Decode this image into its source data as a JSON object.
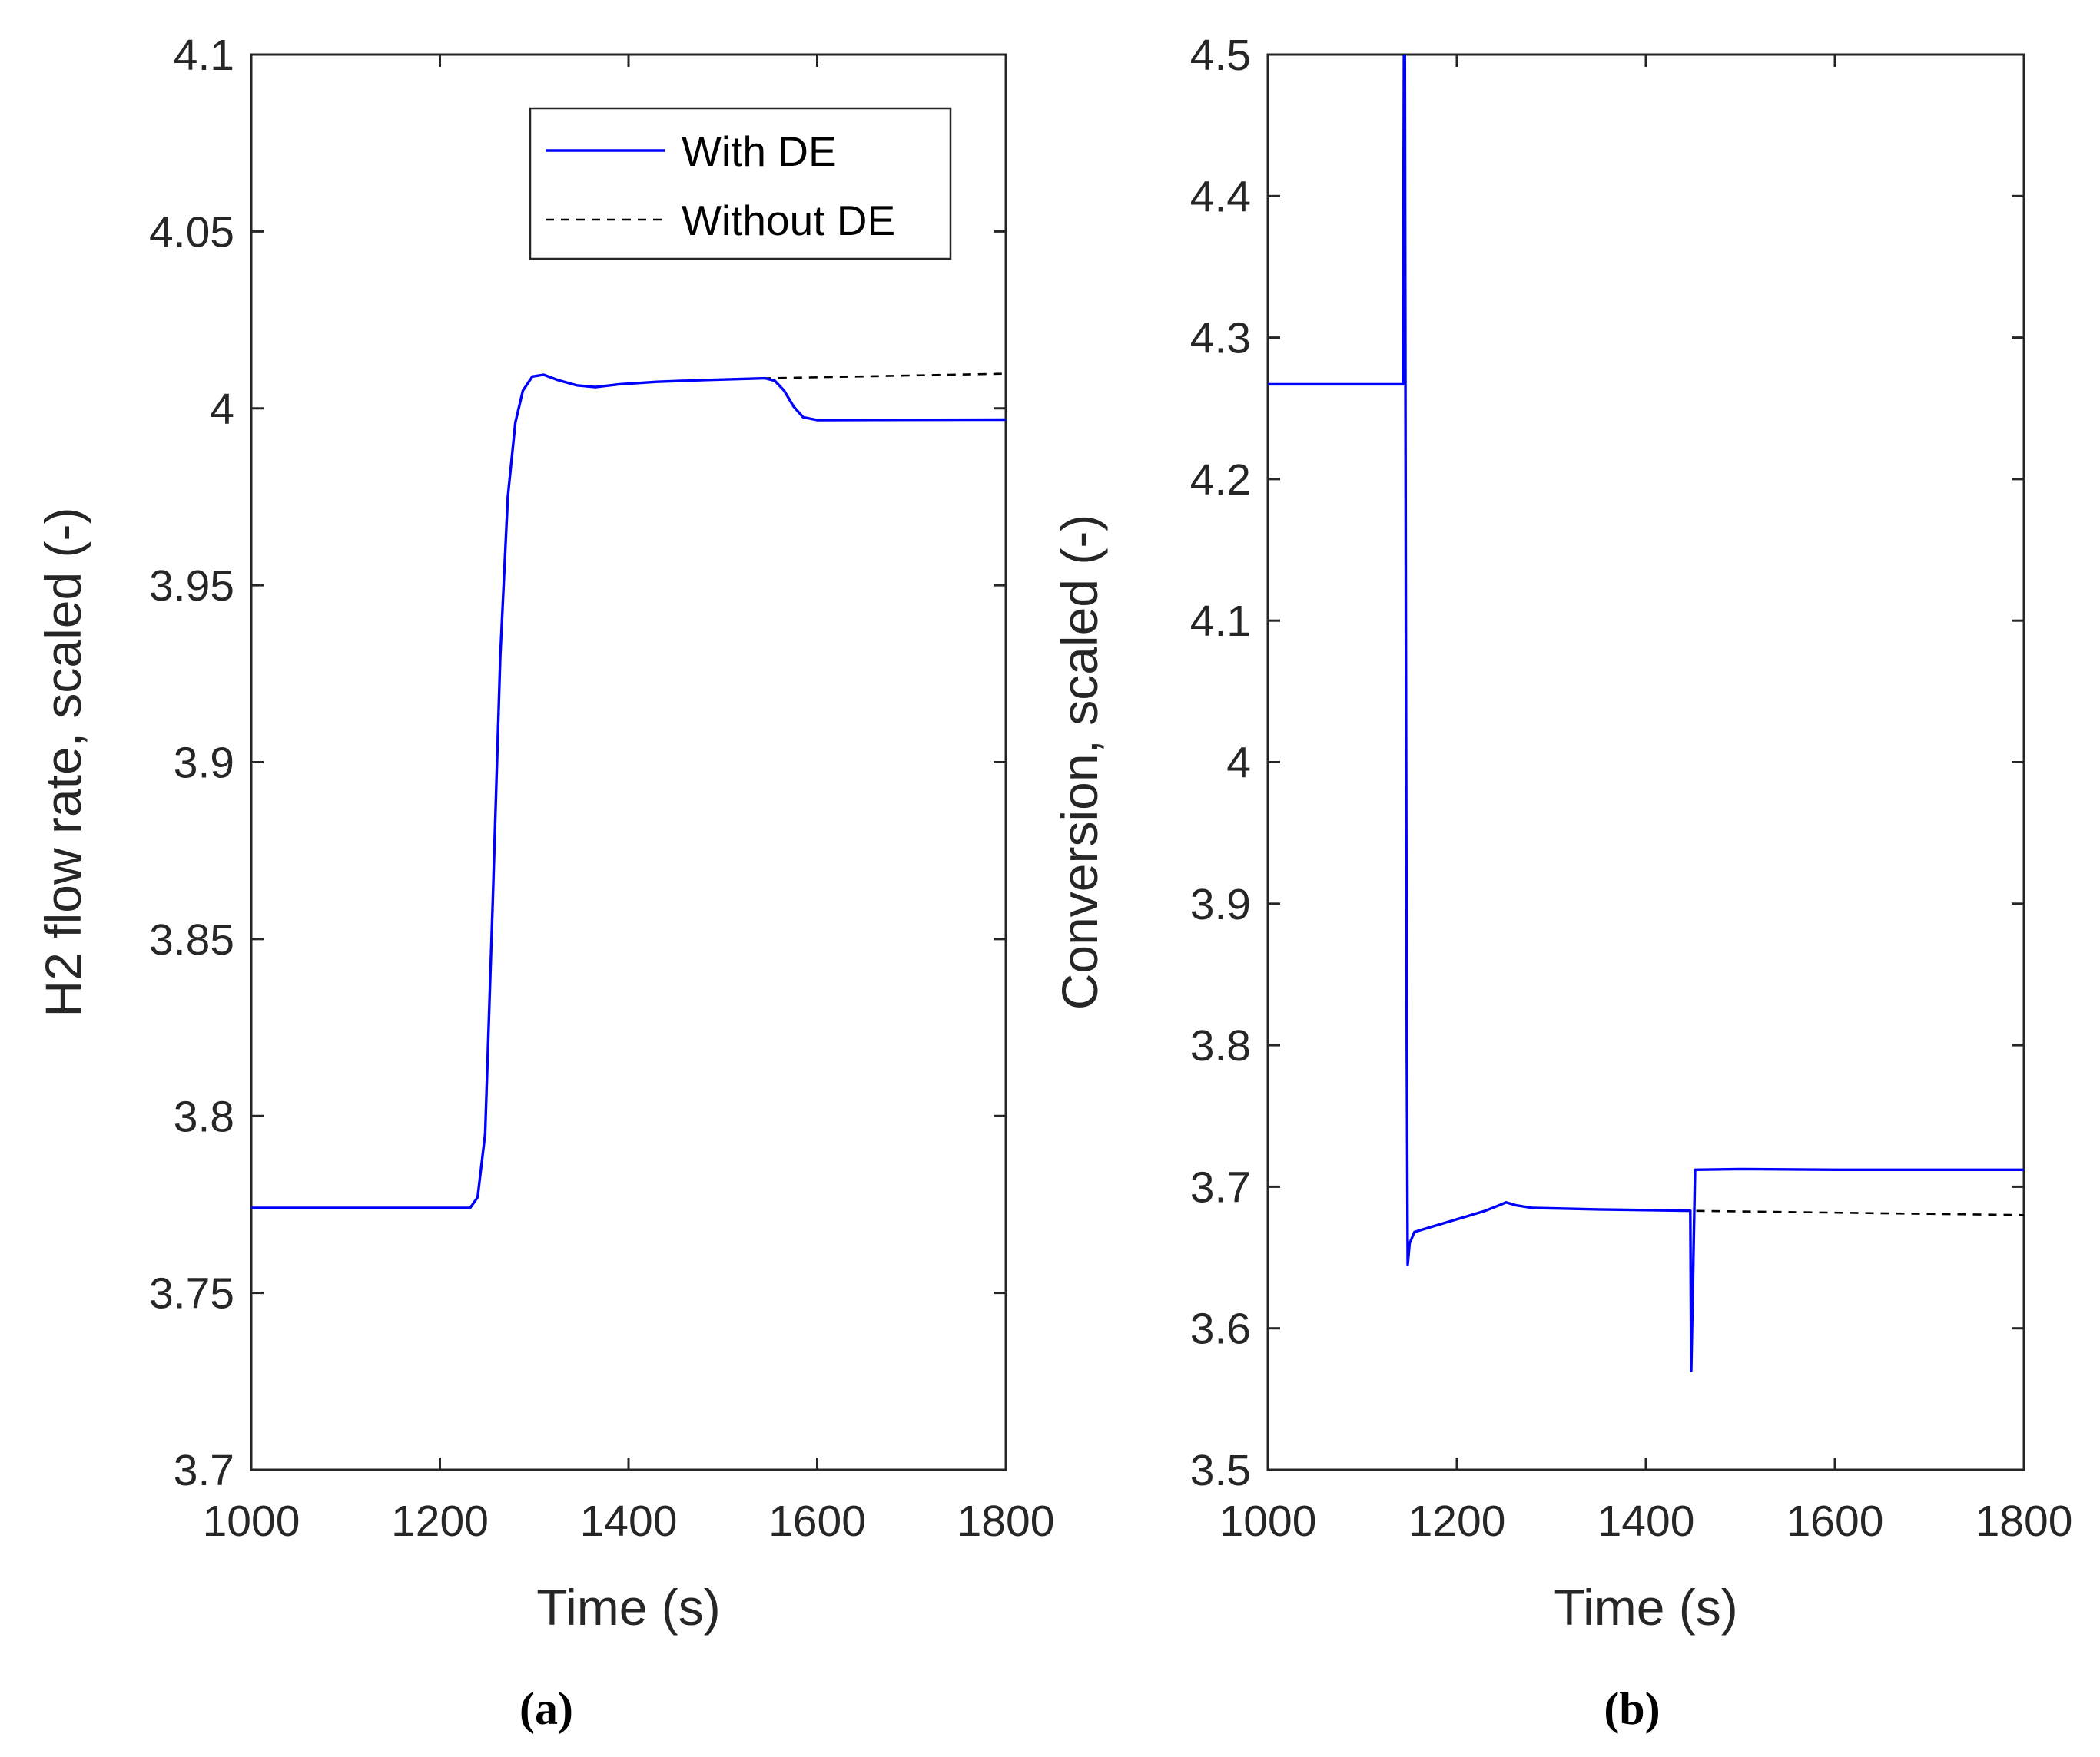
{
  "chart_data": [
    {
      "type": "line",
      "caption": "(a)",
      "title": "",
      "xlabel": "Time (s)",
      "ylabel": "H2 flow rate, scaled (-)",
      "xlim": [
        1000,
        1800
      ],
      "ylim": [
        3.7,
        4.1
      ],
      "xticks": [
        1000,
        1200,
        1400,
        1600,
        1800
      ],
      "xtick_labels": [
        "1000",
        "1200",
        "1400",
        "1600",
        "1800"
      ],
      "yticks": [
        3.7,
        3.75,
        3.8,
        3.85,
        3.9,
        3.95,
        4.0,
        4.05,
        4.1
      ],
      "ytick_labels": [
        "3.7",
        "3.75",
        "3.8",
        "3.85",
        "3.9",
        "3.95",
        "4",
        "4.05",
        "4.1"
      ],
      "grid": false,
      "legend": {
        "position": "top-right",
        "entries": [
          "With DE",
          "Without DE"
        ]
      },
      "series": [
        {
          "name": "With DE",
          "style": "solid",
          "color": "#0000ff",
          "points": [
            [
              1000,
              3.774
            ],
            [
              1232,
              3.774
            ],
            [
              1240,
              3.777
            ],
            [
              1248,
              3.795
            ],
            [
              1256,
              3.86
            ],
            [
              1264,
              3.93
            ],
            [
              1272,
              3.975
            ],
            [
              1280,
              3.996
            ],
            [
              1288,
              4.005
            ],
            [
              1298,
              4.009
            ],
            [
              1310,
              4.0095
            ],
            [
              1325,
              4.008
            ],
            [
              1345,
              4.0065
            ],
            [
              1365,
              4.006
            ],
            [
              1390,
              4.0068
            ],
            [
              1430,
              4.0075
            ],
            [
              1480,
              4.008
            ],
            [
              1545,
              4.0085
            ],
            [
              1555,
              4.0078
            ],
            [
              1565,
              4.005
            ],
            [
              1575,
              4.0005
            ],
            [
              1585,
              3.9975
            ],
            [
              1600,
              3.9967
            ],
            [
              1800,
              3.9968
            ]
          ]
        },
        {
          "name": "Without DE",
          "style": "dashed",
          "color": "#000000",
          "points": [
            [
              1000,
              3.774
            ],
            [
              1232,
              3.774
            ],
            [
              1240,
              3.777
            ],
            [
              1248,
              3.795
            ],
            [
              1256,
              3.86
            ],
            [
              1264,
              3.93
            ],
            [
              1272,
              3.975
            ],
            [
              1280,
              3.996
            ],
            [
              1288,
              4.005
            ],
            [
              1298,
              4.009
            ],
            [
              1310,
              4.0095
            ],
            [
              1325,
              4.008
            ],
            [
              1345,
              4.0065
            ],
            [
              1365,
              4.006
            ],
            [
              1390,
              4.0068
            ],
            [
              1430,
              4.0075
            ],
            [
              1480,
              4.008
            ],
            [
              1545,
              4.0085
            ],
            [
              1800,
              4.0098
            ]
          ]
        }
      ]
    },
    {
      "type": "line",
      "caption": "(b)",
      "title": "",
      "xlabel": "Time (s)",
      "ylabel": "Conversion, scaled (-)",
      "xlim": [
        1000,
        1800
      ],
      "ylim": [
        3.5,
        4.5
      ],
      "xticks": [
        1000,
        1200,
        1400,
        1600,
        1800
      ],
      "xtick_labels": [
        "1000",
        "1200",
        "1400",
        "1600",
        "1800"
      ],
      "yticks": [
        3.5,
        3.6,
        3.7,
        3.8,
        3.9,
        4.0,
        4.1,
        4.2,
        4.3,
        4.4,
        4.5
      ],
      "ytick_labels": [
        "3.5",
        "3.6",
        "3.7",
        "3.8",
        "3.9",
        "4",
        "4.1",
        "4.2",
        "4.3",
        "4.4",
        "4.5"
      ],
      "grid": false,
      "series": [
        {
          "name": "With DE",
          "style": "solid",
          "color": "#0000ff",
          "points": [
            [
              1000,
              4.267
            ],
            [
              1143,
              4.267
            ],
            [
              1144,
              4.5
            ],
            [
              1145,
              4.5
            ],
            [
              1146,
              4.1
            ],
            [
              1147,
              3.8
            ],
            [
              1148,
              3.645
            ],
            [
              1150,
              3.66
            ],
            [
              1155,
              3.668
            ],
            [
              1170,
              3.671
            ],
            [
              1200,
              3.677
            ],
            [
              1230,
              3.683
            ],
            [
              1245,
              3.687
            ],
            [
              1252,
              3.689
            ],
            [
              1262,
              3.687
            ],
            [
              1280,
              3.685
            ],
            [
              1350,
              3.684
            ],
            [
              1447,
              3.683
            ],
            [
              1448,
              3.57
            ],
            [
              1450,
              3.64
            ],
            [
              1452,
              3.712
            ],
            [
              1500,
              3.7125
            ],
            [
              1600,
              3.712
            ],
            [
              1800,
              3.712
            ]
          ]
        },
        {
          "name": "Without DE",
          "style": "dashed",
          "color": "#000000",
          "points": [
            [
              1000,
              4.267
            ],
            [
              1143,
              4.267
            ],
            [
              1144,
              4.5
            ],
            [
              1145,
              4.5
            ],
            [
              1146,
              4.1
            ],
            [
              1147,
              3.8
            ],
            [
              1148,
              3.645
            ],
            [
              1150,
              3.66
            ],
            [
              1155,
              3.668
            ],
            [
              1170,
              3.671
            ],
            [
              1200,
              3.677
            ],
            [
              1230,
              3.683
            ],
            [
              1245,
              3.687
            ],
            [
              1252,
              3.689
            ],
            [
              1262,
              3.687
            ],
            [
              1280,
              3.685
            ],
            [
              1350,
              3.684
            ],
            [
              1447,
              3.683
            ],
            [
              1800,
              3.68
            ]
          ]
        }
      ]
    }
  ]
}
